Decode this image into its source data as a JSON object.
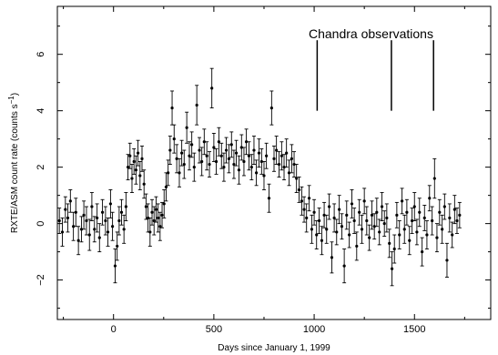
{
  "chart_data": {
    "type": "scatter",
    "xlabel": "Days since January 1, 1999",
    "ylabel_main": "RXTE/ASM count rate (counts s",
    "ylabel_sup": "−1",
    "ylabel_close": ")",
    "xlim": [
      -280,
      1880
    ],
    "ylim": [
      -3.4,
      7.7
    ],
    "xticks": [
      0,
      500,
      1000,
      1500
    ],
    "xtick_labels": [
      "0",
      "500",
      "1000",
      "1500"
    ],
    "yticks": [
      -2,
      0,
      2,
      4,
      6
    ],
    "ytick_labels": [
      "−2",
      "0",
      "2",
      "4",
      "6"
    ],
    "grid": false,
    "annotation": {
      "text": "Chandra observations",
      "days": [
        1015,
        1385,
        1595
      ],
      "line_y_range": [
        4.0,
        6.5
      ]
    },
    "series": [
      {
        "points": [
          [
            -270,
            0.1,
            0.45
          ],
          [
            -255,
            -0.3,
            0.5
          ],
          [
            -240,
            0.5,
            0.45
          ],
          [
            -228,
            0.2,
            0.5
          ],
          [
            -215,
            0.8,
            0.4
          ],
          [
            -200,
            -0.1,
            0.5
          ],
          [
            -188,
            0.4,
            0.5
          ],
          [
            -175,
            -0.6,
            0.5
          ],
          [
            -160,
            -0.2,
            0.45
          ],
          [
            -148,
            0.3,
            0.5
          ],
          [
            -135,
            0.1,
            0.5
          ],
          [
            -120,
            -0.4,
            0.55
          ],
          [
            -108,
            0.6,
            0.5
          ],
          [
            -95,
            -0.2,
            0.45
          ],
          [
            -82,
            0.2,
            0.5
          ],
          [
            -70,
            -0.5,
            0.5
          ],
          [
            -55,
            0.4,
            0.45
          ],
          [
            -40,
            0.1,
            0.5
          ],
          [
            -28,
            -0.3,
            0.5
          ],
          [
            -15,
            0.7,
            0.5
          ],
          [
            -5,
            -0.1,
            0.5
          ],
          [
            8,
            -1.5,
            0.6
          ],
          [
            18,
            -0.8,
            0.5
          ],
          [
            28,
            0.1,
            0.5
          ],
          [
            40,
            0.4,
            0.45
          ],
          [
            52,
            -0.2,
            0.5
          ],
          [
            62,
            0.6,
            0.5
          ],
          [
            72,
            2.0,
            0.45
          ],
          [
            82,
            2.4,
            0.45
          ],
          [
            92,
            1.6,
            0.5
          ],
          [
            102,
            2.2,
            0.45
          ],
          [
            112,
            1.9,
            0.5
          ],
          [
            122,
            2.5,
            0.45
          ],
          [
            132,
            1.7,
            0.5
          ],
          [
            142,
            2.3,
            0.45
          ],
          [
            152,
            1.4,
            0.5
          ],
          [
            162,
            0.6,
            0.45
          ],
          [
            172,
            0.2,
            0.5
          ],
          [
            182,
            -0.3,
            0.5
          ],
          [
            192,
            0.4,
            0.45
          ],
          [
            202,
            0.1,
            0.5
          ],
          [
            212,
            0.5,
            0.45
          ],
          [
            222,
            0.2,
            0.5
          ],
          [
            232,
            -0.1,
            0.5
          ],
          [
            242,
            0.3,
            0.45
          ],
          [
            252,
            0.7,
            0.5
          ],
          [
            262,
            1.3,
            0.5
          ],
          [
            272,
            1.8,
            0.45
          ],
          [
            282,
            2.6,
            0.5
          ],
          [
            292,
            4.1,
            0.6
          ],
          [
            302,
            3.0,
            0.5
          ],
          [
            315,
            2.3,
            0.5
          ],
          [
            328,
            1.8,
            0.5
          ],
          [
            340,
            2.5,
            0.45
          ],
          [
            352,
            2.1,
            0.5
          ],
          [
            365,
            3.4,
            0.55
          ],
          [
            378,
            2.4,
            0.5
          ],
          [
            390,
            2.8,
            0.45
          ],
          [
            402,
            2.0,
            0.5
          ],
          [
            415,
            4.2,
            0.7
          ],
          [
            428,
            2.6,
            0.45
          ],
          [
            440,
            2.2,
            0.5
          ],
          [
            452,
            2.9,
            0.45
          ],
          [
            465,
            2.4,
            0.5
          ],
          [
            478,
            2.1,
            0.45
          ],
          [
            490,
            4.8,
            0.7
          ],
          [
            500,
            2.7,
            0.5
          ],
          [
            512,
            2.2,
            0.45
          ],
          [
            525,
            2.9,
            0.5
          ],
          [
            538,
            2.4,
            0.45
          ],
          [
            550,
            2.0,
            0.5
          ],
          [
            562,
            2.6,
            0.45
          ],
          [
            575,
            2.3,
            0.5
          ],
          [
            588,
            2.8,
            0.45
          ],
          [
            600,
            2.1,
            0.5
          ],
          [
            612,
            2.5,
            0.45
          ],
          [
            625,
            1.9,
            0.5
          ],
          [
            638,
            2.7,
            0.45
          ],
          [
            650,
            2.2,
            0.5
          ],
          [
            662,
            2.9,
            0.45
          ],
          [
            675,
            2.4,
            0.5
          ],
          [
            688,
            2.0,
            0.45
          ],
          [
            700,
            2.6,
            0.5
          ],
          [
            712,
            1.8,
            0.45
          ],
          [
            725,
            2.5,
            0.5
          ],
          [
            738,
            2.2,
            0.45
          ],
          [
            750,
            1.7,
            0.5
          ],
          [
            762,
            2.4,
            0.45
          ],
          [
            775,
            0.9,
            0.5
          ],
          [
            788,
            4.1,
            0.6
          ],
          [
            800,
            2.3,
            0.45
          ],
          [
            812,
            2.6,
            0.5
          ],
          [
            825,
            2.1,
            0.45
          ],
          [
            838,
            2.4,
            0.5
          ],
          [
            850,
            2.0,
            0.45
          ],
          [
            862,
            2.5,
            0.5
          ],
          [
            875,
            1.8,
            0.45
          ],
          [
            888,
            2.3,
            0.5
          ],
          [
            900,
            2.1,
            0.45
          ],
          [
            912,
            1.6,
            0.5
          ],
          [
            925,
            1.2,
            0.45
          ],
          [
            938,
            0.8,
            0.5
          ],
          [
            950,
            0.5,
            0.45
          ],
          [
            962,
            0.2,
            0.5
          ],
          [
            975,
            0.9,
            0.45
          ],
          [
            988,
            -0.2,
            0.5
          ],
          [
            1000,
            0.4,
            0.45
          ],
          [
            1012,
            -0.4,
            0.5
          ],
          [
            1025,
            0.1,
            0.45
          ],
          [
            1038,
            -0.6,
            0.5
          ],
          [
            1050,
            0.3,
            0.45
          ],
          [
            1062,
            -0.2,
            0.5
          ],
          [
            1075,
            0.6,
            0.45
          ],
          [
            1088,
            -1.2,
            0.55
          ],
          [
            1100,
            0.2,
            0.5
          ],
          [
            1112,
            -0.3,
            0.45
          ],
          [
            1125,
            0.5,
            0.5
          ],
          [
            1138,
            -0.1,
            0.45
          ],
          [
            1150,
            -1.5,
            0.6
          ],
          [
            1162,
            0.3,
            0.5
          ],
          [
            1175,
            -0.4,
            0.45
          ],
          [
            1188,
            0.7,
            0.5
          ],
          [
            1200,
            0.1,
            0.45
          ],
          [
            1212,
            -0.8,
            0.5
          ],
          [
            1225,
            0.4,
            0.45
          ],
          [
            1238,
            -0.2,
            0.5
          ],
          [
            1250,
            0.8,
            0.45
          ],
          [
            1262,
            0.1,
            0.5
          ],
          [
            1275,
            -0.5,
            0.45
          ],
          [
            1288,
            0.3,
            0.5
          ],
          [
            1300,
            -0.1,
            0.45
          ],
          [
            1312,
            0.4,
            0.5
          ],
          [
            1325,
            -0.3,
            0.45
          ],
          [
            1338,
            0.6,
            0.5
          ],
          [
            1350,
            0.0,
            0.45
          ],
          [
            1362,
            0.2,
            0.5
          ],
          [
            1375,
            -0.7,
            0.5
          ],
          [
            1388,
            -1.6,
            0.6
          ],
          [
            1400,
            -0.9,
            0.5
          ],
          [
            1412,
            0.3,
            0.45
          ],
          [
            1425,
            -0.4,
            0.5
          ],
          [
            1438,
            0.8,
            0.45
          ],
          [
            1450,
            -0.2,
            0.5
          ],
          [
            1462,
            0.4,
            0.45
          ],
          [
            1475,
            -0.6,
            0.5
          ],
          [
            1488,
            0.1,
            0.45
          ],
          [
            1500,
            0.6,
            0.5
          ],
          [
            1512,
            -0.3,
            0.45
          ],
          [
            1525,
            0.4,
            0.5
          ],
          [
            1538,
            -1.0,
            0.5
          ],
          [
            1550,
            0.2,
            0.45
          ],
          [
            1562,
            -0.4,
            0.5
          ],
          [
            1575,
            0.9,
            0.45
          ],
          [
            1588,
            0.1,
            0.5
          ],
          [
            1600,
            1.6,
            0.7
          ],
          [
            1612,
            -0.5,
            0.5
          ],
          [
            1625,
            0.4,
            0.45
          ],
          [
            1638,
            -0.2,
            0.5
          ],
          [
            1650,
            0.6,
            0.45
          ],
          [
            1662,
            -1.3,
            0.6
          ],
          [
            1675,
            0.2,
            0.5
          ],
          [
            1688,
            -0.4,
            0.45
          ],
          [
            1700,
            0.5,
            0.5
          ],
          [
            1712,
            0.1,
            0.45
          ],
          [
            1725,
            0.3,
            0.45
          ]
        ]
      }
    ]
  }
}
